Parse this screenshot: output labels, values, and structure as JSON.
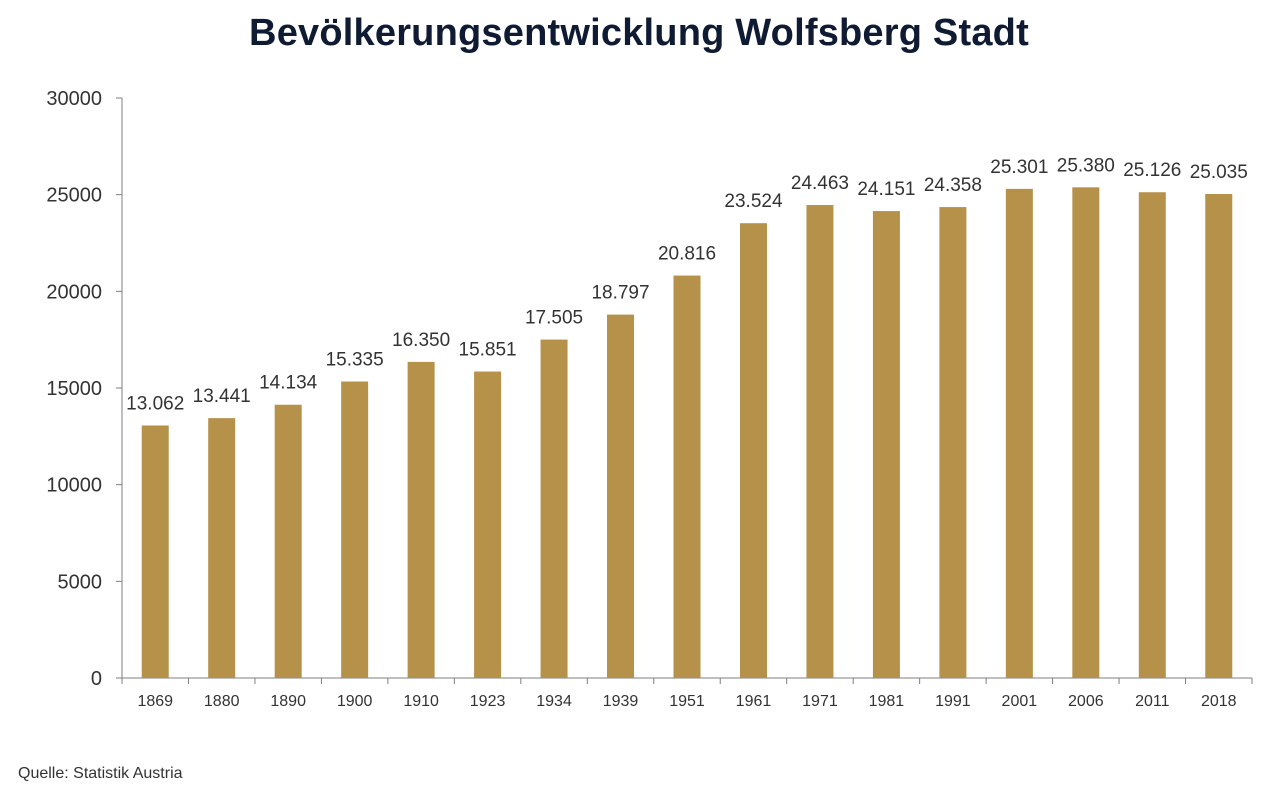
{
  "colors": {
    "bar": "#b5914a",
    "axis": "#7f7f7f",
    "text": "#333333",
    "title": "#0f1b33"
  },
  "chart_data": {
    "type": "bar",
    "title": "Bevölkerungsentwicklung Wolfsberg Stadt",
    "source": "Quelle: Statistik Austria",
    "xlabel": "",
    "ylabel": "",
    "categories": [
      "1869",
      "1880",
      "1890",
      "1900",
      "1910",
      "1923",
      "1934",
      "1939",
      "1951",
      "1961",
      "1971",
      "1981",
      "1991",
      "2001",
      "2006",
      "2011",
      "2018"
    ],
    "values": [
      13062,
      13441,
      14134,
      15335,
      16350,
      15851,
      17505,
      18797,
      20816,
      23524,
      24463,
      24151,
      24358,
      25301,
      25380,
      25126,
      25035
    ],
    "data_labels": [
      "13.062",
      "13.441",
      "14.134",
      "15.335",
      "16.350",
      "15.851",
      "17.505",
      "18.797",
      "20.816",
      "23.524",
      "24.463",
      "24.151",
      "24.358",
      "25.301",
      "25.380",
      "25.126",
      "25.035"
    ],
    "ylim": [
      0,
      30000
    ],
    "yticks": [
      0,
      5000,
      10000,
      15000,
      20000,
      25000,
      30000
    ],
    "ytick_labels": [
      "0",
      "5000",
      "10000",
      "15000",
      "20000",
      "25000",
      "30000"
    ],
    "grid": false,
    "legend": "none"
  }
}
